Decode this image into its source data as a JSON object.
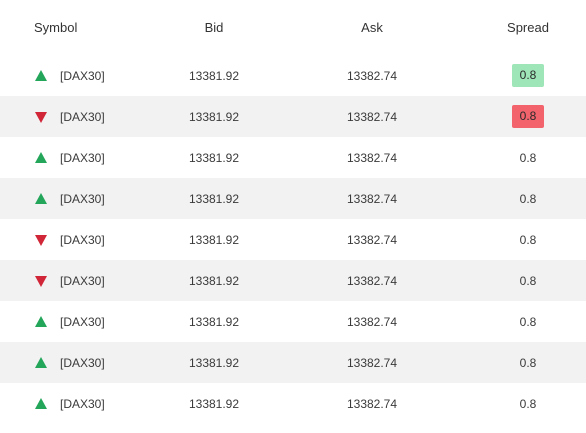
{
  "header": {
    "symbol": "Symbol",
    "bid": "Bid",
    "ask": "Ask",
    "spread": "Spread"
  },
  "colors": {
    "up": "#23a55a",
    "down": "#d12637",
    "highlight_green": "#9ee6b8",
    "highlight_red": "#f2636c"
  },
  "rows": [
    {
      "direction": "up-arrow-icon",
      "symbol": "[DAX30]",
      "bid": "13381.92",
      "ask": "13382.74",
      "spread": "0.8",
      "highlight": "green"
    },
    {
      "direction": "down-arrow-icon",
      "symbol": "[DAX30]",
      "bid": "13381.92",
      "ask": "13382.74",
      "spread": "0.8",
      "highlight": "red"
    },
    {
      "direction": "up-arrow-icon",
      "symbol": "[DAX30]",
      "bid": "13381.92",
      "ask": "13382.74",
      "spread": "0.8",
      "highlight": "none"
    },
    {
      "direction": "up-arrow-icon",
      "symbol": "[DAX30]",
      "bid": "13381.92",
      "ask": "13382.74",
      "spread": "0.8",
      "highlight": "none"
    },
    {
      "direction": "down-arrow-icon",
      "symbol": "[DAX30]",
      "bid": "13381.92",
      "ask": "13382.74",
      "spread": "0.8",
      "highlight": "none"
    },
    {
      "direction": "down-arrow-icon",
      "symbol": "[DAX30]",
      "bid": "13381.92",
      "ask": "13382.74",
      "spread": "0.8",
      "highlight": "none"
    },
    {
      "direction": "up-arrow-icon",
      "symbol": "[DAX30]",
      "bid": "13381.92",
      "ask": "13382.74",
      "spread": "0.8",
      "highlight": "none"
    },
    {
      "direction": "up-arrow-icon",
      "symbol": "[DAX30]",
      "bid": "13381.92",
      "ask": "13382.74",
      "spread": "0.8",
      "highlight": "none"
    },
    {
      "direction": "up-arrow-icon",
      "symbol": "[DAX30]",
      "bid": "13381.92",
      "ask": "13382.74",
      "spread": "0.8",
      "highlight": "none"
    }
  ]
}
